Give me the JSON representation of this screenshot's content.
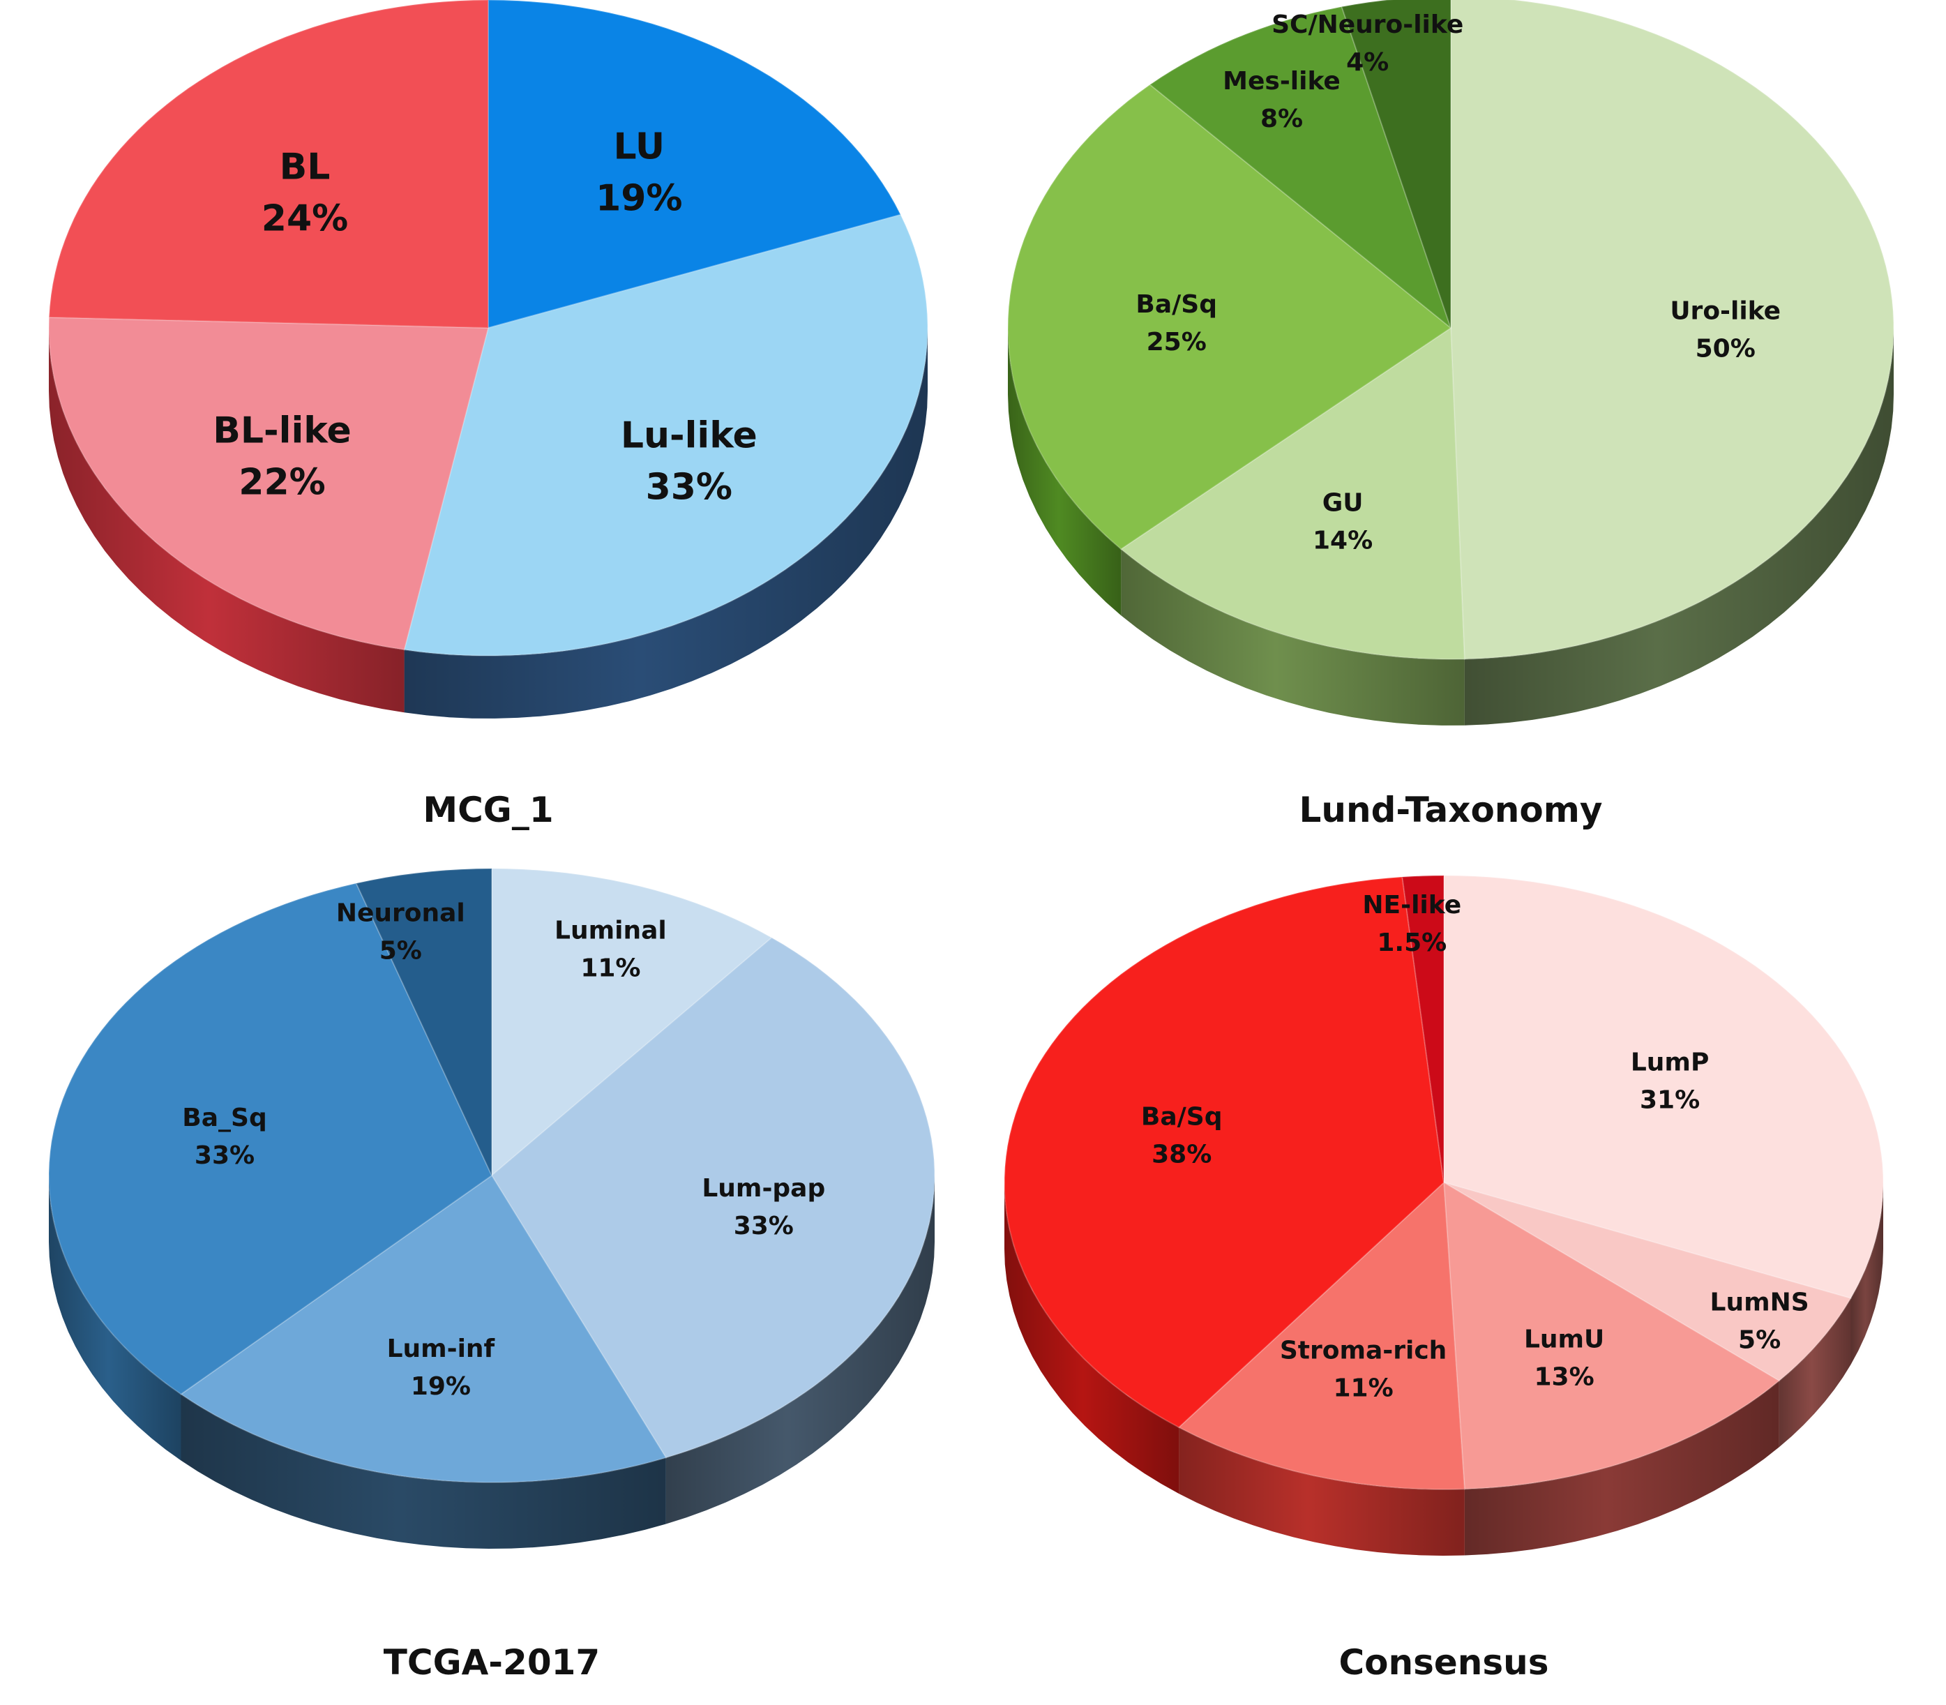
{
  "figure": {
    "background": "#ffffff"
  },
  "chart_data": [
    {
      "type": "pie",
      "title": "MCG_1",
      "categories": [
        "LU",
        "Lu-like",
        "BL-like",
        "BL"
      ],
      "labels": [
        "LU",
        "Lu-like",
        "BL-like",
        "BL"
      ],
      "value_labels": [
        "19%",
        "33%",
        "22%",
        "24%"
      ],
      "values": [
        19,
        33,
        22,
        24
      ],
      "colors": [
        "#0a84e6",
        "#9cd6f4",
        "#f28c96",
        "#f24f55"
      ],
      "side_colors": [
        "#1f4f86",
        "#2a4d76",
        "#c0303a",
        "#c0303a"
      ]
    },
    {
      "type": "pie",
      "title": "Lund-Taxonomy",
      "categories": [
        "Uro-like",
        "GU",
        "Ba/Sq",
        "Mes-like",
        "SC/Neuro-like"
      ],
      "labels": [
        "Uro-like",
        "GU",
        "Ba/Sq",
        "Mes-like",
        "SC/Neuro-like"
      ],
      "value_labels": [
        "50%",
        "14%",
        "25%",
        "8%",
        "4%"
      ],
      "values": [
        50,
        14,
        25,
        8,
        4
      ],
      "colors": [
        "#cfe3b8",
        "#bfdc9f",
        "#86c04a",
        "#5b9c2f",
        "#3d6f1f"
      ],
      "side_colors": [
        "#5a6e48",
        "#6f8f4d",
        "#4f8a22",
        "#3f6e1c",
        "#2e5016"
      ]
    },
    {
      "type": "pie",
      "title": "TCGA-2017",
      "categories": [
        "Luminal",
        "Lum-pap",
        "Lum-inf",
        "Ba_Sq",
        "Neuronal"
      ],
      "labels": [
        "Luminal",
        "Lum-pap",
        "Lum-inf",
        "Ba_Sq",
        "Neuronal"
      ],
      "value_labels": [
        "11%",
        "33%",
        "19%",
        "33%",
        "5%"
      ],
      "values": [
        11,
        33,
        19,
        33,
        5
      ],
      "colors": [
        "#c9def0",
        "#adcbe8",
        "#6ea8d9",
        "#3b87c4",
        "#245d8c"
      ],
      "side_colors": [
        "#4a5a6a",
        "#45586b",
        "#2a4a66",
        "#2a5f8a",
        "#1d3f5e"
      ]
    },
    {
      "type": "pie",
      "title": "Consensus",
      "categories": [
        "LumP",
        "LumNS",
        "LumU",
        "Stroma-rich",
        "Ba/Sq",
        "NE-like"
      ],
      "labels": [
        "LumP",
        "LumNS",
        "LumU",
        "Stroma-rich",
        "Ba/Sq",
        "NE-like"
      ],
      "value_labels": [
        "31%",
        "5%",
        "13%",
        "11%",
        "38%",
        "1.5%"
      ],
      "values": [
        31,
        5,
        13,
        11,
        38,
        1.5
      ],
      "colors": [
        "#fde0de",
        "#f9c8c5",
        "#f79a95",
        "#f6736b",
        "#f7201d",
        "#cc0a18"
      ],
      "side_colors": [
        "#7a4440",
        "#8a4a46",
        "#8a3a36",
        "#b8302a",
        "#b51512",
        "#8a0a12"
      ]
    }
  ]
}
